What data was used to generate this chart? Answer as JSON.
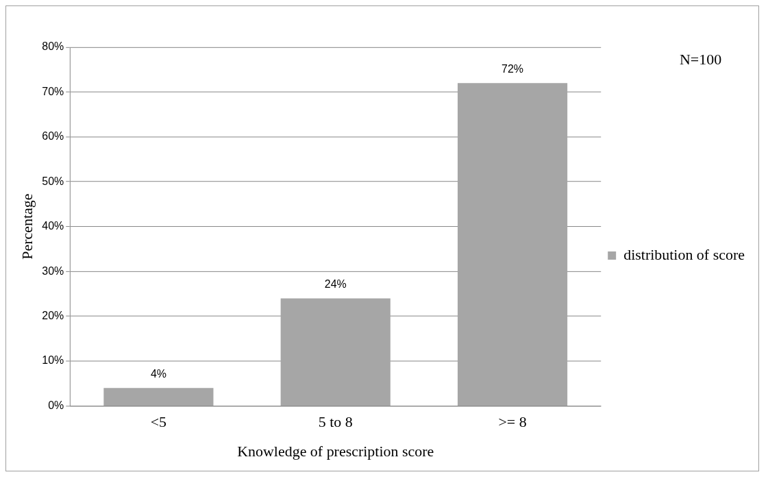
{
  "chart_data": {
    "type": "bar",
    "xlabel": "Knowledge of prescription score",
    "ylabel": "Percentage",
    "categories": [
      "<5",
      "5 to 8",
      ">= 8"
    ],
    "series": [
      {
        "name": "distribution of score",
        "color": "#a6a6a6",
        "values": [
          4,
          24,
          72
        ]
      }
    ],
    "value_labels": [
      "4%",
      "24%",
      "72%"
    ],
    "ylim": [
      0,
      80
    ],
    "yticks": [
      {
        "value": 0,
        "label": "0%"
      },
      {
        "value": 10,
        "label": "10%"
      },
      {
        "value": 20,
        "label": "20%"
      },
      {
        "value": 30,
        "label": "30%"
      },
      {
        "value": 40,
        "label": "40%"
      },
      {
        "value": 50,
        "label": "50%"
      },
      {
        "value": 60,
        "label": "60%"
      },
      {
        "value": 70,
        "label": "70%"
      },
      {
        "value": 80,
        "label": "80%"
      }
    ],
    "grid": "y",
    "legend": "right",
    "annotations": [
      "N=100"
    ]
  }
}
